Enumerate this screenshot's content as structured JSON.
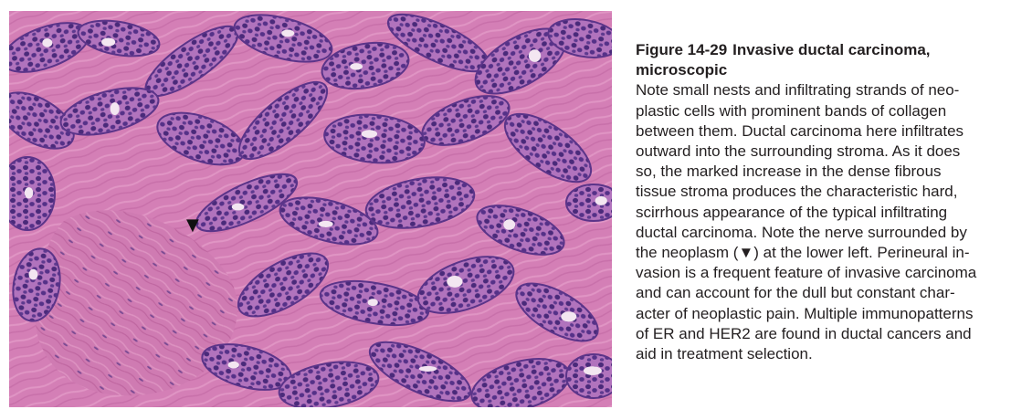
{
  "figure": {
    "number": "Figure 14-29",
    "title": "Invasive ductal carcinoma, microscopic",
    "title_lines": [
      "Invasive ductal carcinoma,",
      "microscopic"
    ],
    "caption_lines": [
      "Note small nests and infiltrating strands of neo-",
      "plastic cells with prominent bands of collagen",
      "between them. Ductal carcinoma here infiltrates",
      "outward into the surrounding stroma. As it does",
      "so, the marked increase in the dense fibrous",
      "tissue stroma produces the characteristic hard,",
      "scirrhous appearance of the typical infiltrating",
      "ductal carcinoma. Note the nerve surrounded by",
      "the neoplasm (▼) at the lower left. Perineural in-",
      "vasion is a frequent feature of invasive carcinoma",
      "and can account for the dull but constant char-",
      "acter of neoplastic pain. Multiple immunopatterns",
      "of ER and HER2 are found in ductal cancers and",
      "aid in treatment selection."
    ],
    "arrow_marker": "▼"
  },
  "colors": {
    "stroma": "#d47fb6",
    "stroma_dark": "#c46aa6",
    "nucleus": "#4a2a7a",
    "nest": "#b77fc0",
    "lumen": "#f3e6f1",
    "text": "#231f20"
  }
}
